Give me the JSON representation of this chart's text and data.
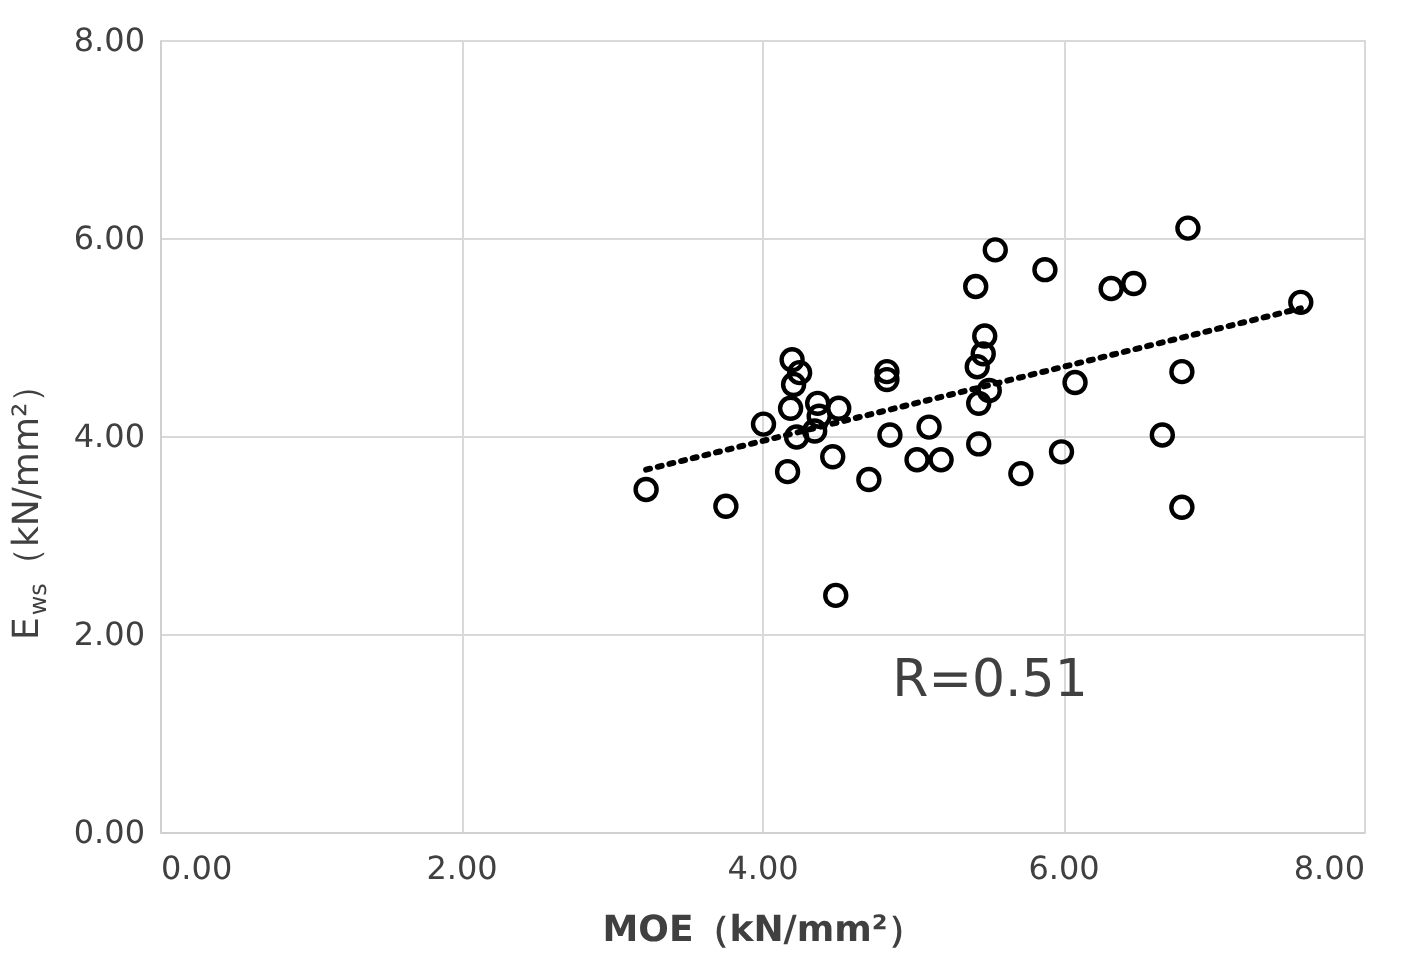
{
  "chart_data": {
    "type": "scatter",
    "xlabel": "MOE（kN/mm²）",
    "ylabel": "E$_{ws}$（kN/mm²）",
    "xlim": [
      0,
      8
    ],
    "ylim": [
      0,
      8
    ],
    "xticks": [
      {
        "value": 0,
        "label": "0.00"
      },
      {
        "value": 2,
        "label": "2.00"
      },
      {
        "value": 4,
        "label": "4.00"
      },
      {
        "value": 6,
        "label": "6.00"
      },
      {
        "value": 8,
        "label": "8.00"
      }
    ],
    "yticks": [
      {
        "value": 0,
        "label": "0.00"
      },
      {
        "value": 2,
        "label": "2.00"
      },
      {
        "value": 4,
        "label": "4.00"
      },
      {
        "value": 6,
        "label": "6.00"
      },
      {
        "value": 8,
        "label": "8.00"
      }
    ],
    "grid": true,
    "annotations": [
      "R=0.51"
    ],
    "series": [
      {
        "type": "scatter",
        "marker": "circle",
        "color": "#000000",
        "x": [
          3.23,
          3.76,
          4.01,
          4.17,
          4.2,
          4.25,
          4.21,
          4.19,
          4.23,
          4.37,
          4.38,
          4.35,
          4.51,
          4.47,
          4.49,
          4.71,
          4.83,
          4.83,
          4.85,
          5.03,
          5.11,
          5.19,
          5.42,
          5.55,
          5.48,
          5.47,
          5.43,
          5.51,
          5.44,
          5.44,
          5.72,
          5.88,
          5.99,
          6.08,
          6.32,
          6.47,
          6.66,
          6.79,
          6.79,
          6.83,
          7.58
        ],
        "values": [
          3.46,
          3.29,
          4.12,
          3.64,
          4.77,
          4.64,
          4.52,
          4.28,
          3.99,
          4.33,
          4.2,
          4.05,
          4.28,
          3.79,
          2.39,
          3.56,
          4.65,
          4.57,
          4.01,
          3.76,
          4.09,
          3.76,
          5.51,
          5.88,
          5.01,
          4.83,
          4.7,
          4.46,
          4.33,
          3.92,
          3.62,
          5.68,
          3.84,
          4.54,
          5.49,
          5.54,
          4.01,
          4.65,
          3.28,
          6.1,
          5.35
        ]
      },
      {
        "type": "line",
        "color": "#000000",
        "line_style": "dotted",
        "x": [
          3.23,
          7.58
        ],
        "values": [
          3.66,
          5.29
        ]
      }
    ]
  }
}
